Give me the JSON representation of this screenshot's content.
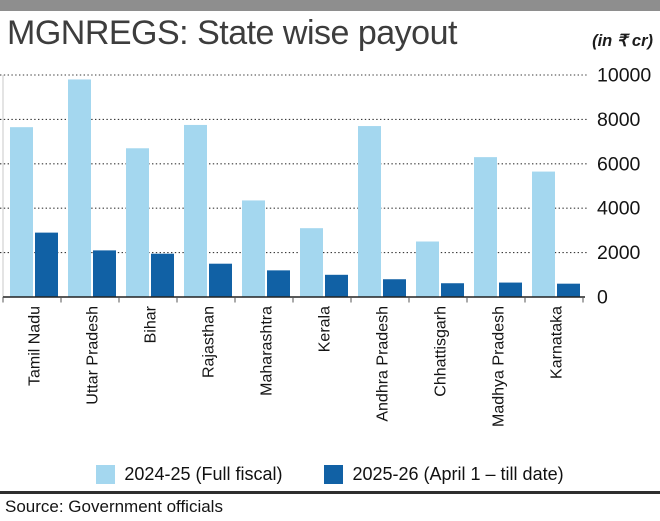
{
  "header": {
    "title": "MGNREGS: State wise payout",
    "unit_note": "(in ₹ cr)"
  },
  "chart_data": {
    "type": "bar",
    "title": "MGNREGS: State wise payout",
    "unit": "₹ cr",
    "categories": [
      "Tamil Nadu",
      "Uttar Pradesh",
      "Bihar",
      "Rajasthan",
      "Maharashtra",
      "Kerala",
      "Andhra Pradesh",
      "Chhattisgarh",
      "Madhya Pradesh",
      "Karnataka"
    ],
    "series": [
      {
        "name": "2024-25 (Full fiscal)",
        "color": "#a4d7ef",
        "values": [
          7650,
          9800,
          6700,
          7750,
          4350,
          3100,
          7700,
          2500,
          6300,
          5650
        ]
      },
      {
        "name": "2025-26 (April 1 – till date)",
        "color": "#1161a5",
        "values": [
          2900,
          2100,
          1950,
          1500,
          1200,
          1000,
          800,
          620,
          650,
          600
        ]
      }
    ],
    "ylim": [
      0,
      10000
    ],
    "yticks": [
      0,
      2000,
      4000,
      6000,
      8000,
      10000
    ],
    "grid": "horizontal-dotted",
    "legend_position": "bottom"
  },
  "footer": {
    "source": "Source: Government officials"
  },
  "colors": {
    "top_bar": "#8e8e8e",
    "grid_line": "#3a3a3a",
    "axis_line": "#222222",
    "text": "#141414"
  }
}
